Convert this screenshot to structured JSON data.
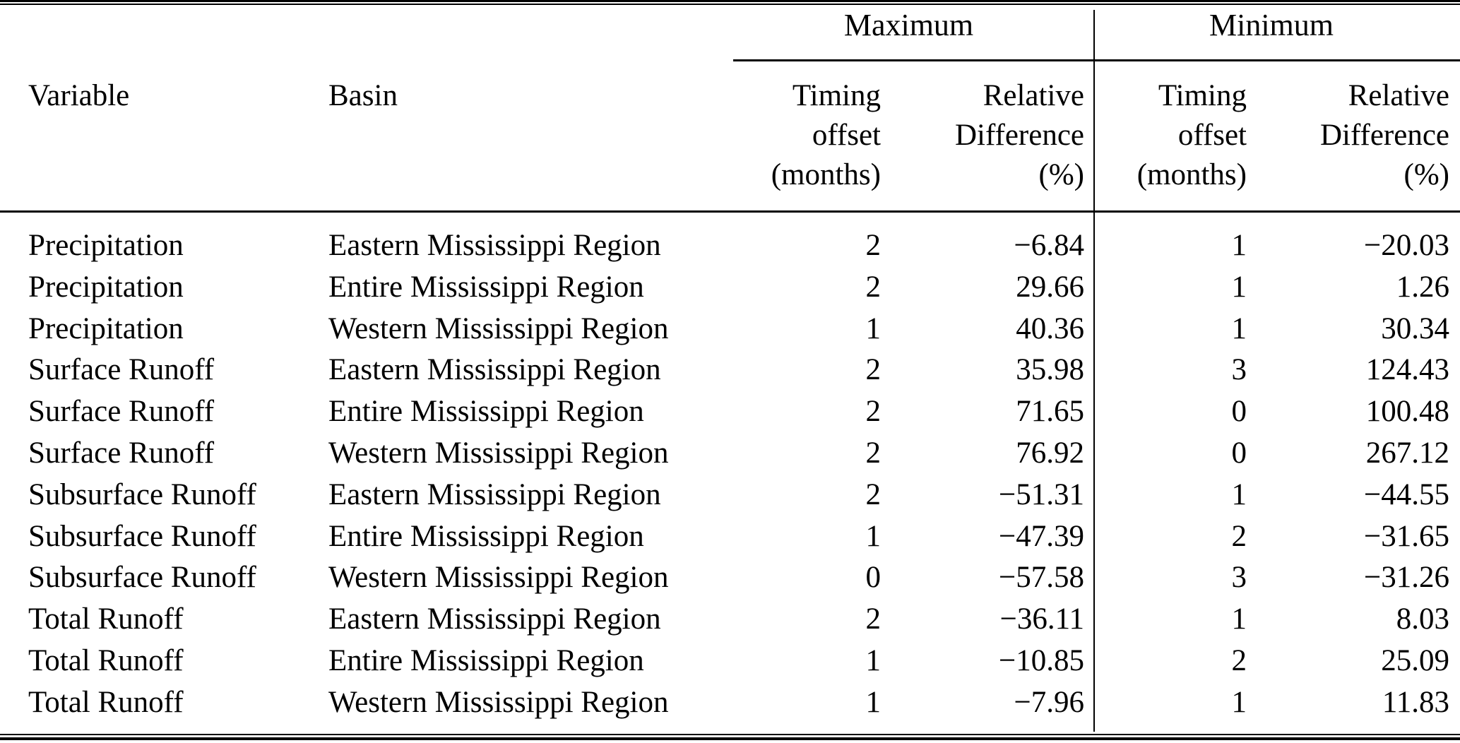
{
  "table": {
    "column_groups": {
      "maximum_label": "Maximum",
      "minimum_label": "Minimum"
    },
    "headers": {
      "variable": "Variable",
      "basin": "Basin",
      "timing_lines": [
        "Timing",
        "offset",
        "(months)"
      ],
      "relative_lines": [
        "Relative",
        "Difference",
        "(%)"
      ]
    },
    "rows": [
      {
        "variable": "Precipitation",
        "basin": "Eastern Mississippi Region",
        "max_timing": "2",
        "max_rel": "−6.84",
        "min_timing": "1",
        "min_rel": "−20.03"
      },
      {
        "variable": "Precipitation",
        "basin": "Entire Mississippi Region",
        "max_timing": "2",
        "max_rel": "29.66",
        "min_timing": "1",
        "min_rel": "1.26"
      },
      {
        "variable": "Precipitation",
        "basin": "Western Mississippi Region",
        "max_timing": "1",
        "max_rel": "40.36",
        "min_timing": "1",
        "min_rel": "30.34"
      },
      {
        "variable": "Surface Runoff",
        "basin": "Eastern Mississippi Region",
        "max_timing": "2",
        "max_rel": "35.98",
        "min_timing": "3",
        "min_rel": "124.43"
      },
      {
        "variable": "Surface Runoff",
        "basin": "Entire Mississippi Region",
        "max_timing": "2",
        "max_rel": "71.65",
        "min_timing": "0",
        "min_rel": "100.48"
      },
      {
        "variable": "Surface Runoff",
        "basin": "Western Mississippi Region",
        "max_timing": "2",
        "max_rel": "76.92",
        "min_timing": "0",
        "min_rel": "267.12"
      },
      {
        "variable": "Subsurface Runoff",
        "basin": "Eastern Mississippi Region",
        "max_timing": "2",
        "max_rel": "−51.31",
        "min_timing": "1",
        "min_rel": "−44.55"
      },
      {
        "variable": "Subsurface Runoff",
        "basin": "Entire Mississippi Region",
        "max_timing": "1",
        "max_rel": "−47.39",
        "min_timing": "2",
        "min_rel": "−31.65"
      },
      {
        "variable": "Subsurface Runoff",
        "basin": "Western Mississippi Region",
        "max_timing": "0",
        "max_rel": "−57.58",
        "min_timing": "3",
        "min_rel": "−31.26"
      },
      {
        "variable": "Total Runoff",
        "basin": "Eastern Mississippi Region",
        "max_timing": "2",
        "max_rel": "−36.11",
        "min_timing": "1",
        "min_rel": "8.03"
      },
      {
        "variable": "Total Runoff",
        "basin": "Entire Mississippi Region",
        "max_timing": "1",
        "max_rel": "−10.85",
        "min_timing": "2",
        "min_rel": "25.09"
      },
      {
        "variable": "Total Runoff",
        "basin": "Western Mississippi Region",
        "max_timing": "1",
        "max_rel": "−7.96",
        "min_timing": "1",
        "min_rel": "11.83"
      }
    ]
  },
  "chart_data": {
    "type": "table",
    "title": "",
    "column_headers": [
      "Variable",
      "Basin",
      "Maximum Timing offset (months)",
      "Maximum Relative Difference (%)",
      "Minimum Timing offset (months)",
      "Minimum Relative Difference (%)"
    ],
    "rows": [
      [
        "Precipitation",
        "Eastern Mississippi Region",
        2,
        -6.84,
        1,
        -20.03
      ],
      [
        "Precipitation",
        "Entire Mississippi Region",
        2,
        29.66,
        1,
        1.26
      ],
      [
        "Precipitation",
        "Western Mississippi Region",
        1,
        40.36,
        1,
        30.34
      ],
      [
        "Surface Runoff",
        "Eastern Mississippi Region",
        2,
        35.98,
        3,
        124.43
      ],
      [
        "Surface Runoff",
        "Entire Mississippi Region",
        2,
        71.65,
        0,
        100.48
      ],
      [
        "Surface Runoff",
        "Western Mississippi Region",
        2,
        76.92,
        0,
        267.12
      ],
      [
        "Subsurface Runoff",
        "Eastern Mississippi Region",
        2,
        -51.31,
        1,
        -44.55
      ],
      [
        "Subsurface Runoff",
        "Entire Mississippi Region",
        1,
        -47.39,
        2,
        -31.65
      ],
      [
        "Subsurface Runoff",
        "Western Mississippi Region",
        0,
        -57.58,
        3,
        -31.26
      ],
      [
        "Total Runoff",
        "Eastern Mississippi Region",
        2,
        -36.11,
        1,
        8.03
      ],
      [
        "Total Runoff",
        "Entire Mississippi Region",
        1,
        -10.85,
        2,
        25.09
      ],
      [
        "Total Runoff",
        "Western Mississippi Region",
        1,
        -7.96,
        1,
        11.83
      ]
    ]
  },
  "colors": {
    "text": "#000000",
    "background": "#ffffff",
    "rule": "#000000"
  }
}
